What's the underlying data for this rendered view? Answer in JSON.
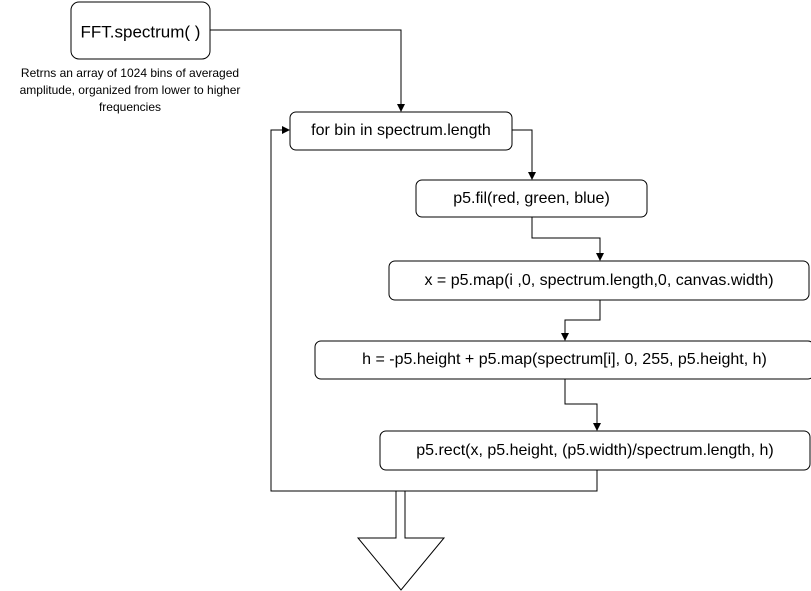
{
  "nodes": {
    "fft_spectrum": "FFT.spectrum( )",
    "for_loop": "for bin in spectrum.length",
    "fill": "p5.fil(red, green, blue)",
    "map_x": "x = p5.map(i ,0, spectrum.length,0, canvas.width)",
    "map_h": "h = -p5.height + p5.map(spectrum[i], 0, 255, p5.height, h)",
    "rect": "p5.rect(x, p5.height, (p5.width)/spectrum.length, h)"
  },
  "note": {
    "lines": [
      "Retrns an array of 1024 bins of averaged",
      "amplitude, organized from lower to higher",
      "frequencies"
    ]
  },
  "colors": {
    "stroke": "#000000",
    "background": "#ffffff"
  }
}
